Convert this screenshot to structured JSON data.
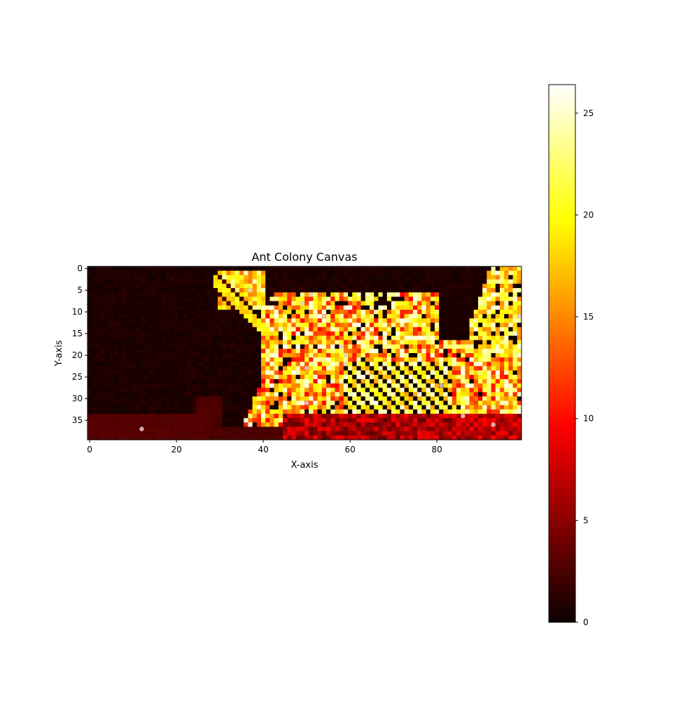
{
  "chart_data": {
    "type": "heatmap",
    "title": "Ant Colony Canvas",
    "xlabel": "X-axis",
    "ylabel": "Y-axis",
    "columns": 100,
    "rows": 40,
    "x_ticks": [
      0,
      20,
      40,
      60,
      80
    ],
    "y_ticks": [
      0,
      5,
      10,
      15,
      20,
      25,
      30,
      35
    ],
    "colormap": "hot",
    "value_range": [
      0,
      26.4
    ],
    "colorbar_ticks": [
      0,
      5,
      10,
      15,
      20,
      25
    ],
    "region_values": {
      "background": 0.3,
      "bottom_band": 2.5,
      "dense_core": 22
    },
    "ants": [
      {
        "x": 12,
        "y": 37
      },
      {
        "x": 37,
        "y": 5
      },
      {
        "x": 49,
        "y": 8
      },
      {
        "x": 51,
        "y": 6
      },
      {
        "x": 54,
        "y": 11
      },
      {
        "x": 50,
        "y": 23
      },
      {
        "x": 50,
        "y": 31
      },
      {
        "x": 58,
        "y": 18
      },
      {
        "x": 59,
        "y": 20
      },
      {
        "x": 59,
        "y": 22
      },
      {
        "x": 81,
        "y": 27
      },
      {
        "x": 86,
        "y": 34
      },
      {
        "x": 93,
        "y": 36
      },
      {
        "x": 99,
        "y": 11
      }
    ]
  }
}
